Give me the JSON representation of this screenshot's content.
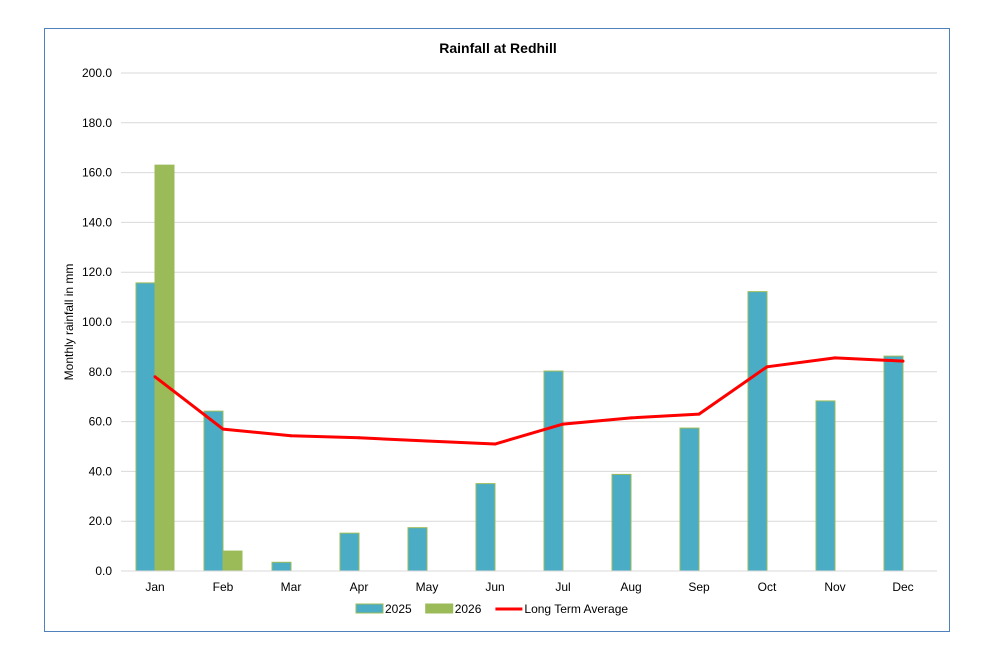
{
  "chart_data": {
    "type": "bar",
    "title": "Rainfall at Redhill",
    "xlabel": "",
    "ylabel": "Monthly rainfall in mm",
    "ylim": [
      0,
      200
    ],
    "ytick_step": 20,
    "ytick_decimals": 1,
    "grid": true,
    "legend_position": "bottom",
    "categories": [
      "Jan",
      "Feb",
      "Mar",
      "Apr",
      "May",
      "Jun",
      "Jul",
      "Aug",
      "Sep",
      "Oct",
      "Nov",
      "Dec"
    ],
    "series": [
      {
        "name": "2025",
        "type": "bar",
        "color": "#4bacc6",
        "edge_color": "#9bbb59",
        "values": [
          115.7,
          64.2,
          3.5,
          15.2,
          17.4,
          35.1,
          80.3,
          38.8,
          57.4,
          112.2,
          68.3,
          86.3
        ]
      },
      {
        "name": "2026",
        "type": "bar",
        "color": "#9bbb59",
        "edge_color": "#9bbb59",
        "values": [
          163.0,
          8.0,
          null,
          null,
          null,
          null,
          null,
          null,
          null,
          null,
          null,
          null
        ]
      },
      {
        "name": "Long Term Average",
        "type": "line",
        "color": "#ff0000",
        "values": [
          78.0,
          57.0,
          54.3,
          53.5,
          52.2,
          51.0,
          59.0,
          61.5,
          63.0,
          82.0,
          85.6,
          84.3
        ]
      }
    ]
  }
}
